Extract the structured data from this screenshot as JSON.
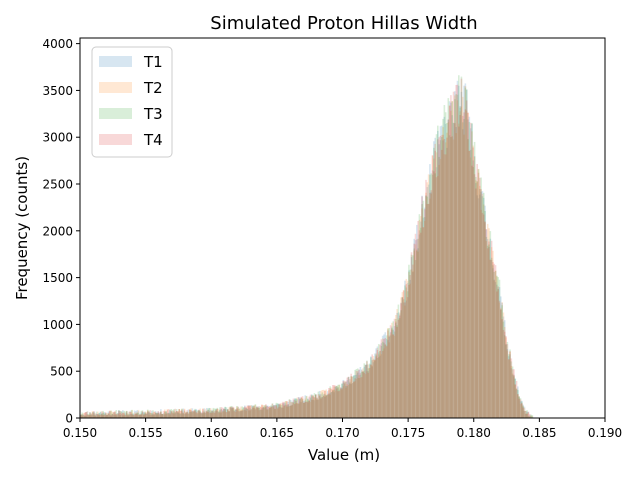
{
  "chart_data": {
    "type": "histogram",
    "title": "Simulated Proton Hillas Width",
    "xlabel": "Value (m)",
    "ylabel": "Frequency (counts)",
    "xlim": [
      0.15,
      0.19
    ],
    "ylim": [
      0,
      4060
    ],
    "xticks": [
      0.15,
      0.155,
      0.16,
      0.165,
      0.17,
      0.175,
      0.18,
      0.185,
      0.19
    ],
    "xtick_labels": [
      "0.150",
      "0.155",
      "0.160",
      "0.165",
      "0.170",
      "0.175",
      "0.180",
      "0.185",
      "0.190"
    ],
    "yticks": [
      0,
      500,
      1000,
      1500,
      2000,
      2500,
      3000,
      3500,
      4000
    ],
    "ytick_labels": [
      "0",
      "500",
      "1000",
      "1500",
      "2000",
      "2500",
      "3000",
      "3500",
      "4000"
    ],
    "legend_position": "top-left",
    "grid": false,
    "bin_width": 0.0001,
    "envelope": {
      "x": [
        0.15,
        0.155,
        0.16,
        0.165,
        0.168,
        0.17,
        0.172,
        0.174,
        0.175,
        0.176,
        0.177,
        0.178,
        0.1785,
        0.179,
        0.1795,
        0.18,
        0.181,
        0.182,
        0.1825,
        0.183,
        0.1835,
        0.184,
        0.1845
      ],
      "y": [
        50,
        60,
        80,
        130,
        230,
        350,
        560,
        1000,
        1450,
        2150,
        2750,
        3150,
        3300,
        3400,
        3250,
        2800,
        2000,
        1300,
        800,
        500,
        200,
        60,
        10
      ]
    },
    "series": [
      {
        "name": "T1",
        "color": "#1f77b4",
        "scale": 1.0,
        "seed": 11
      },
      {
        "name": "T2",
        "color": "#ff7f0e",
        "scale": 0.99,
        "seed": 23
      },
      {
        "name": "T3",
        "color": "#2ca02c",
        "scale": 1.01,
        "seed": 37
      },
      {
        "name": "T4",
        "color": "#d62728",
        "scale": 0.995,
        "seed": 53
      }
    ]
  }
}
